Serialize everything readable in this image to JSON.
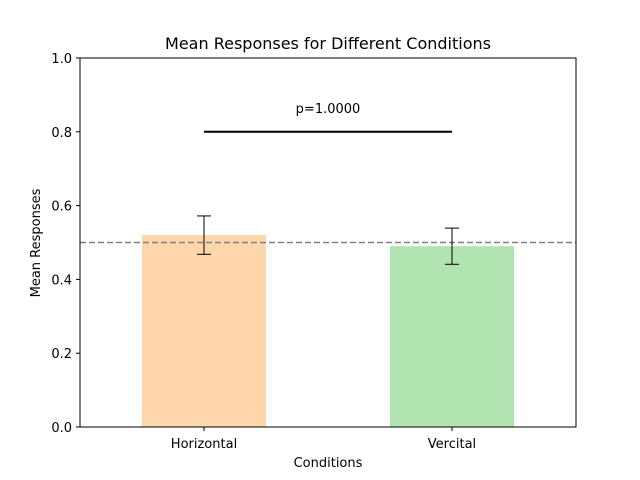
{
  "chart_data": {
    "type": "bar",
    "title": "Mean Responses for Different Conditions",
    "xlabel": "Conditions",
    "ylabel": "Mean Responses",
    "categories": [
      "Horizontal",
      "Vercital"
    ],
    "values": [
      0.52,
      0.49
    ],
    "errors": [
      0.052,
      0.049
    ],
    "bar_colors": [
      "#fdd6ab",
      "#b2e4b2"
    ],
    "ylim": [
      0,
      1.0
    ],
    "yticks": [
      "0.0",
      "0.2",
      "0.4",
      "0.6",
      "0.8",
      "1.0"
    ],
    "reference_line": {
      "y": 0.5,
      "style": "dashed",
      "color": "#808080"
    },
    "significance": {
      "label": "p=1.0000",
      "y": 0.8,
      "from": "Horizontal",
      "to": "Vercital"
    },
    "grid": false,
    "legend": "none"
  }
}
